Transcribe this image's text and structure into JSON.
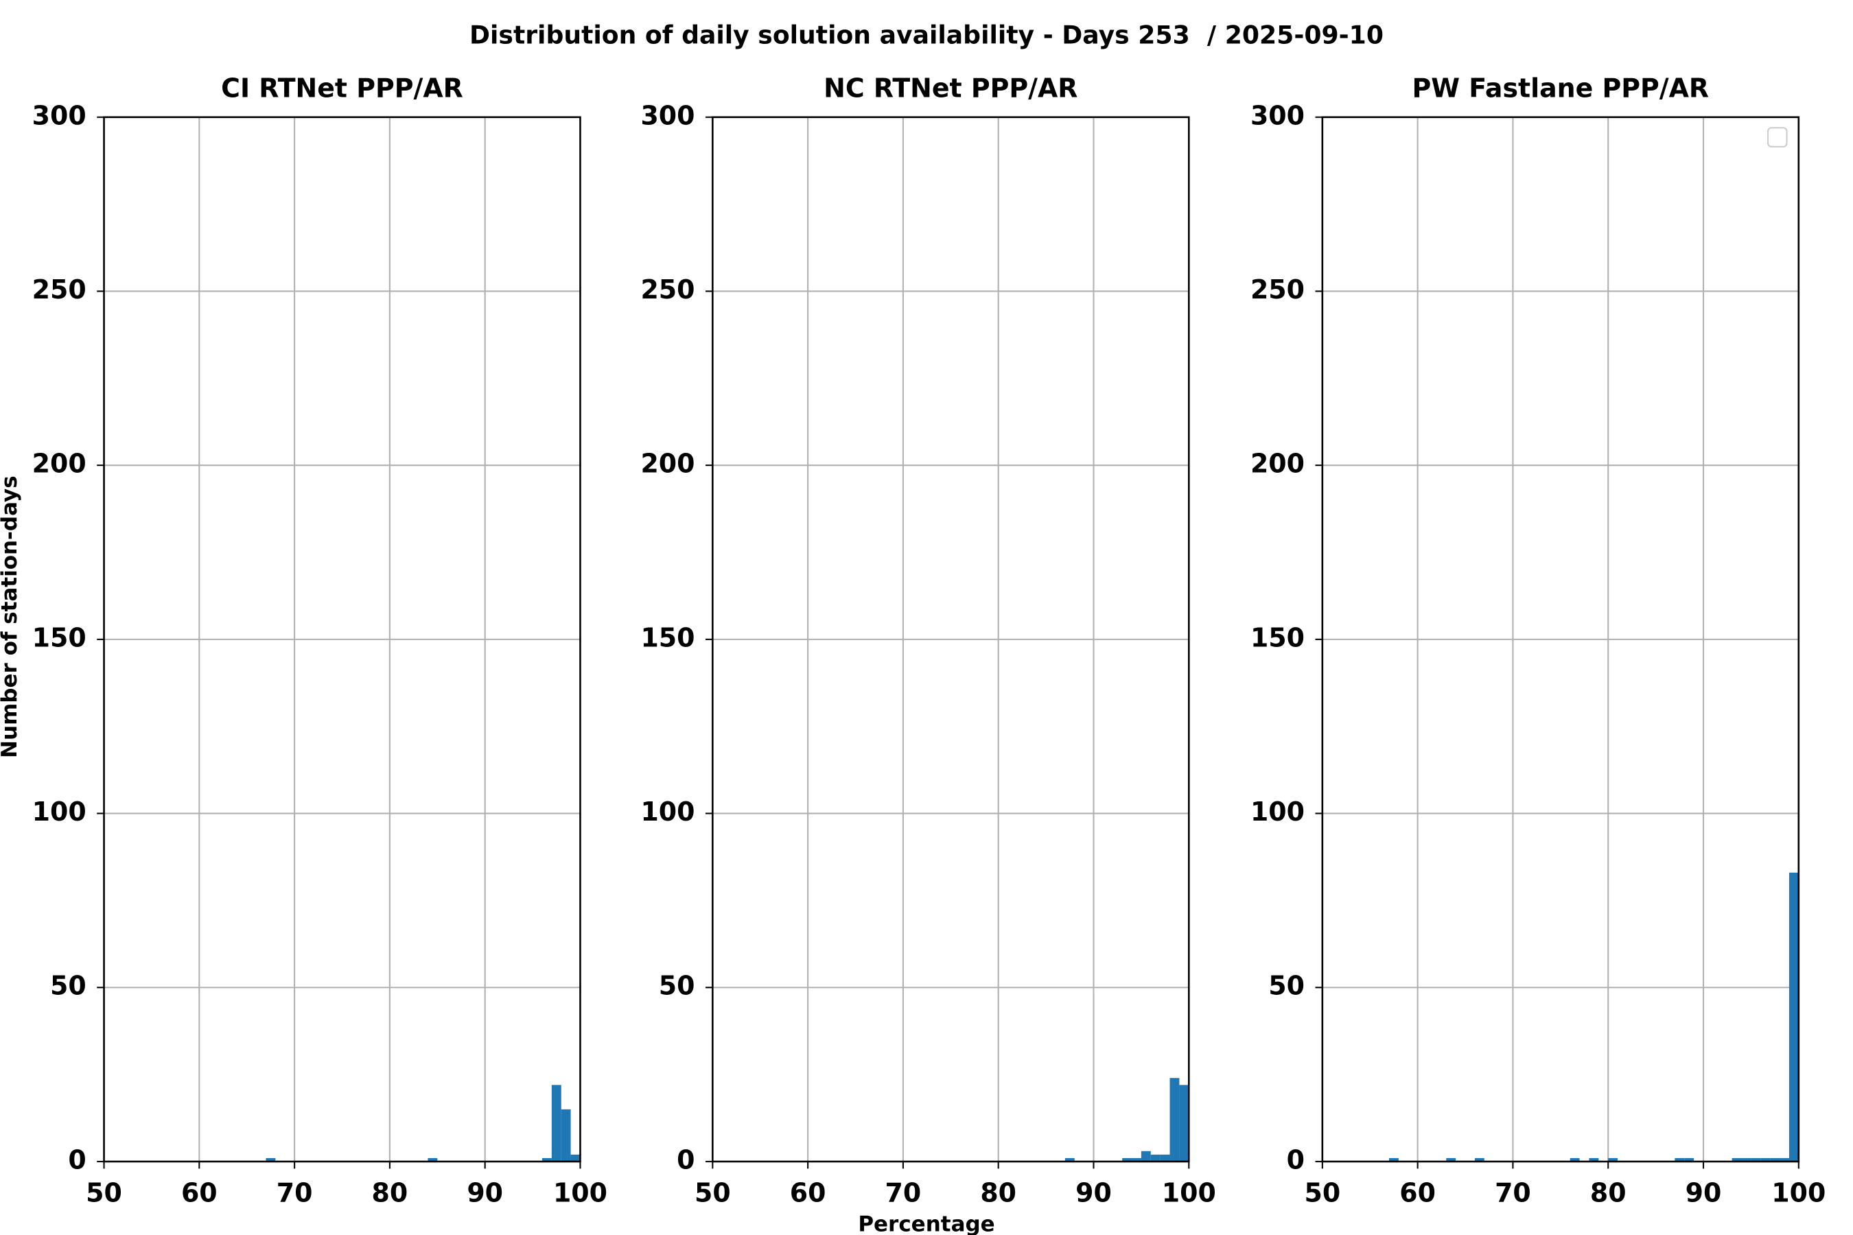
{
  "title": "Distribution of daily solution availability - Days 253  / 2025-09-10",
  "xlabel": "Percentage",
  "ylabel": "Number of station-days",
  "chart_data": [
    {
      "type": "histogram",
      "title": "CI RTNet PPP/AR",
      "color": "#1f77b4",
      "bins": [
        67,
        68,
        69,
        70,
        71,
        72,
        73,
        74,
        75,
        76,
        77,
        78,
        79,
        80,
        81,
        82,
        83,
        84,
        85,
        86,
        87,
        88,
        89,
        90,
        91,
        92,
        93,
        94,
        95,
        96,
        97,
        98,
        99,
        100
      ],
      "values": [
        1,
        0,
        0,
        0,
        0,
        0,
        0,
        0,
        0,
        0,
        0,
        0,
        0,
        0,
        0,
        0,
        0,
        1,
        0,
        0,
        0,
        0,
        0,
        0,
        0,
        0,
        0,
        0,
        0,
        1,
        22,
        15,
        2
      ],
      "xlim": [
        50,
        100
      ],
      "ylim": [
        0,
        300
      ],
      "xticks": [
        50,
        60,
        70,
        80,
        90,
        100
      ],
      "yticks": [
        0,
        50,
        100,
        150,
        200,
        250,
        300
      ],
      "grid": true
    },
    {
      "type": "histogram",
      "title": "NC RTNet PPP/AR",
      "color": "#1f77b4",
      "bins": [
        87,
        88,
        89,
        90,
        91,
        92,
        93,
        94,
        95,
        96,
        97,
        98,
        99,
        100
      ],
      "values": [
        1,
        0,
        0,
        0,
        0,
        0,
        1,
        1,
        3,
        2,
        2,
        24,
        22
      ],
      "xlim": [
        50,
        100
      ],
      "ylim": [
        0,
        300
      ],
      "xticks": [
        50,
        60,
        70,
        80,
        90,
        100
      ],
      "yticks": [
        0,
        50,
        100,
        150,
        200,
        250,
        300
      ],
      "grid": true
    },
    {
      "type": "histogram",
      "title": "PW Fastlane PPP/AR",
      "color": "#1f77b4",
      "bins": [
        57,
        58,
        59,
        60,
        61,
        62,
        63,
        64,
        65,
        66,
        67,
        68,
        69,
        70,
        71,
        72,
        73,
        74,
        75,
        76,
        77,
        78,
        79,
        80,
        81,
        82,
        83,
        84,
        85,
        86,
        87,
        88,
        89,
        90,
        91,
        92,
        93,
        94,
        95,
        96,
        97,
        98,
        99,
        100
      ],
      "values": [
        1,
        0,
        0,
        0,
        0,
        0,
        1,
        0,
        0,
        1,
        0,
        0,
        0,
        0,
        0,
        0,
        0,
        0,
        0,
        1,
        0,
        1,
        0,
        1,
        0,
        0,
        0,
        0,
        0,
        0,
        1,
        1,
        0,
        0,
        0,
        0,
        1,
        1,
        1,
        1,
        1,
        1,
        83
      ],
      "xlim": [
        50,
        100
      ],
      "ylim": [
        0,
        300
      ],
      "xticks": [
        50,
        60,
        70,
        80,
        90,
        100
      ],
      "yticks": [
        0,
        50,
        100,
        150,
        200,
        250,
        300
      ],
      "grid": true,
      "legend": "upper right"
    }
  ]
}
